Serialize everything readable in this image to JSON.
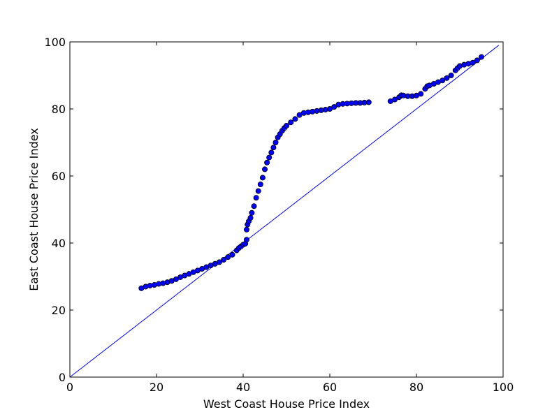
{
  "chart_data": {
    "type": "scatter",
    "title": "",
    "xlabel": "West Coast House Price Index",
    "ylabel": "East Coast House Price Index",
    "xlim": [
      0,
      100
    ],
    "ylim": [
      0,
      100
    ],
    "xticks": [
      "0",
      "20",
      "40",
      "60",
      "80",
      "100"
    ],
    "yticks": [
      "0",
      "20",
      "40",
      "60",
      "80",
      "100"
    ],
    "grid": false,
    "marker_color": "#0000ff",
    "marker_edge_color": "#000000",
    "line_color": "#0000ff",
    "reference_line": {
      "x": [
        0,
        99
      ],
      "y": [
        0,
        99
      ]
    },
    "series": [
      {
        "x": [
          16.5,
          17.5,
          18.5,
          19.5,
          20.5,
          21.5,
          22.5,
          23.5,
          24.5,
          25.5,
          26.5,
          27.5,
          28.5,
          29.5,
          30.5,
          31.5,
          32.5,
          33.5,
          34.5,
          35.5,
          36.5,
          37.5,
          38.5,
          39.0,
          39.5,
          40.0,
          40.5,
          40.8,
          40.8,
          41.0,
          41.3,
          41.7,
          42.0,
          42.5,
          43.0,
          43.5,
          44.0,
          44.5,
          45.0,
          45.5,
          46.0,
          46.5,
          47.0,
          47.5,
          48.0,
          48.5,
          49.0,
          49.5,
          50.0,
          51.0,
          52.0,
          53.0,
          54.0,
          55.0,
          56.0,
          57.0,
          58.0,
          59.0,
          60.0,
          61.0,
          62.0,
          63.0,
          64.0,
          65.0,
          66.0,
          67.0,
          68.0,
          69.0,
          74.0,
          75.0,
          76.0,
          76.5,
          77.0,
          78.0,
          79.0,
          80.0,
          81.0,
          82.0,
          82.5,
          83.0,
          84.0,
          85.0,
          86.0,
          87.0,
          88.0,
          89.0,
          89.5,
          90.0,
          91.0,
          92.0,
          93.0,
          94.0,
          95.0
        ],
        "y": [
          26.5,
          27.0,
          27.3,
          27.5,
          27.8,
          28.0,
          28.3,
          28.7,
          29.2,
          29.8,
          30.3,
          30.8,
          31.3,
          31.8,
          32.3,
          32.8,
          33.3,
          33.8,
          34.3,
          35.0,
          35.8,
          36.5,
          37.8,
          38.5,
          39.0,
          39.5,
          39.8,
          41.0,
          44.0,
          45.5,
          46.5,
          47.5,
          49.0,
          51.0,
          53.5,
          55.5,
          57.5,
          59.5,
          62.0,
          64.0,
          65.5,
          67.0,
          68.5,
          70.0,
          71.5,
          72.5,
          73.5,
          74.3,
          75.0,
          76.0,
          77.0,
          78.2,
          78.8,
          79.0,
          79.2,
          79.4,
          79.6,
          79.8,
          80.0,
          80.6,
          81.3,
          81.5,
          81.6,
          81.7,
          81.8,
          81.8,
          81.9,
          82.0,
          82.3,
          82.8,
          83.5,
          84.1,
          84.0,
          83.8,
          83.8,
          84.0,
          84.5,
          86.0,
          86.8,
          87.0,
          87.5,
          88.0,
          88.5,
          89.2,
          90.0,
          91.5,
          92.2,
          92.8,
          93.2,
          93.5,
          93.8,
          94.5,
          95.5
        ]
      }
    ]
  }
}
